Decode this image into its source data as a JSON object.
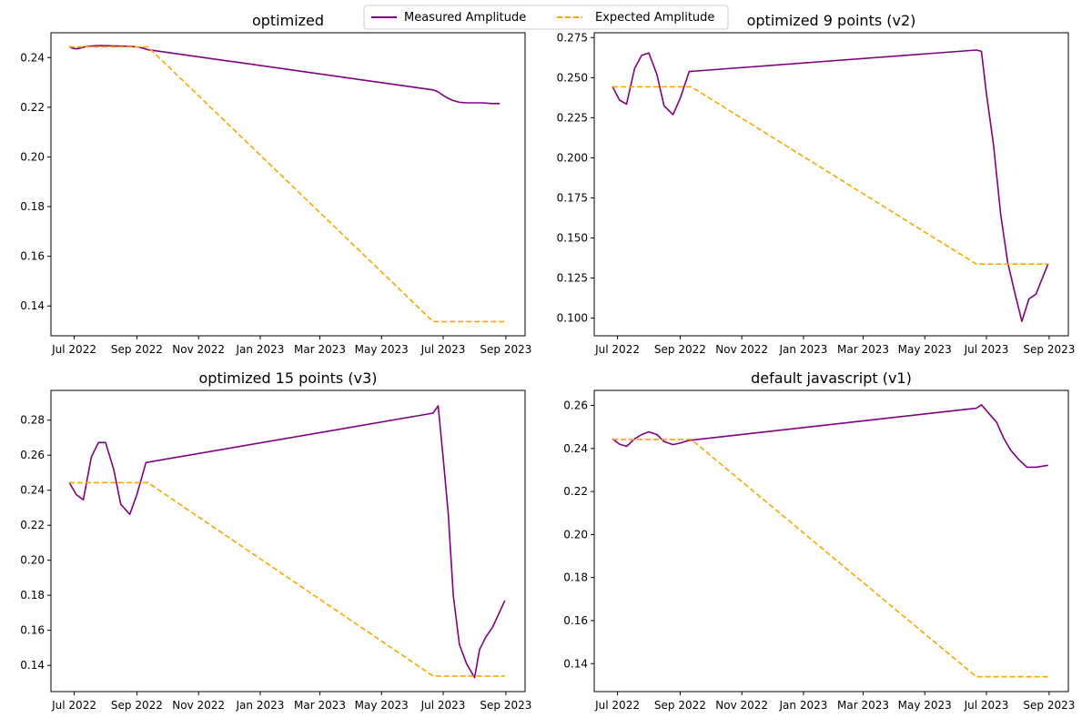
{
  "legend": {
    "placement": "top-center",
    "entries": [
      {
        "label": "Measured Amplitude",
        "color": "#800080",
        "style": "solid"
      },
      {
        "label": "Expected Amplitude",
        "color": "#FFA500",
        "style": "dashed"
      }
    ]
  },
  "chart_data": [
    {
      "type": "line",
      "title": "optimized",
      "xlabel": "",
      "ylabel": "",
      "x_tick_labels": [
        "Jul 2022",
        "Sep 2022",
        "Nov 2022",
        "Jan 2023",
        "Mar 2023",
        "May 2023",
        "Jul 2023",
        "Sep 2023"
      ],
      "x_ticks": [
        "2022-07-01",
        "2022-09-01",
        "2022-11-01",
        "2023-01-01",
        "2023-03-01",
        "2023-05-01",
        "2023-07-01",
        "2023-09-01"
      ],
      "xlim": [
        "2022-06-08",
        "2023-09-20"
      ],
      "ylim": [
        0.128,
        0.25
      ],
      "y_ticks": [
        0.14,
        0.16,
        0.18,
        0.2,
        0.22,
        0.24
      ],
      "y_tick_labels": [
        "0.14",
        "0.16",
        "0.18",
        "0.20",
        "0.22",
        "0.24"
      ],
      "grid": false,
      "series": [
        {
          "name": "Measured Amplitude",
          "color": "#800080",
          "style": "solid",
          "x": [
            "2022-06-26",
            "2022-06-29",
            "2022-07-03",
            "2022-07-06",
            "2022-07-11",
            "2022-07-17",
            "2022-07-24",
            "2022-08-01",
            "2022-08-09",
            "2022-08-18",
            "2022-08-26",
            "2022-09-03",
            "2022-09-12",
            "2023-06-21",
            "2023-06-26",
            "2023-07-01",
            "2023-07-06",
            "2023-07-11",
            "2023-07-17",
            "2023-07-24",
            "2023-08-01",
            "2023-08-09",
            "2023-08-18",
            "2023-08-26"
          ],
          "y": [
            0.2445,
            0.2438,
            0.2435,
            0.2437,
            0.2443,
            0.2446,
            0.2448,
            0.2448,
            0.2447,
            0.2446,
            0.2445,
            0.2442,
            0.2432,
            0.227,
            0.2262,
            0.2248,
            0.2236,
            0.2227,
            0.222,
            0.2218,
            0.2218,
            0.2218,
            0.2215,
            0.2215
          ]
        },
        {
          "name": "Expected Amplitude",
          "color": "#FFA500",
          "style": "dashed",
          "x": [
            "2022-06-26",
            "2022-09-12",
            "2023-06-21",
            "2023-08-31"
          ],
          "y": [
            0.2443,
            0.2443,
            0.1337,
            0.1337
          ]
        }
      ]
    },
    {
      "type": "line",
      "title": "optimized 9 points (v2)",
      "xlabel": "",
      "ylabel": "",
      "x_tick_labels": [
        "Jul 2022",
        "Sep 2022",
        "Nov 2022",
        "Jan 2023",
        "Mar 2023",
        "May 2023",
        "Jul 2023",
        "Sep 2023"
      ],
      "x_ticks": [
        "2022-07-01",
        "2022-09-01",
        "2022-11-01",
        "2023-01-01",
        "2023-03-01",
        "2023-05-01",
        "2023-07-01",
        "2023-09-01"
      ],
      "xlim": [
        "2022-06-08",
        "2023-09-20"
      ],
      "ylim": [
        0.089,
        0.278
      ],
      "y_ticks": [
        0.1,
        0.125,
        0.15,
        0.175,
        0.2,
        0.225,
        0.25,
        0.275
      ],
      "y_tick_labels": [
        "0.100",
        "0.125",
        "0.150",
        "0.175",
        "0.200",
        "0.225",
        "0.250",
        "0.275"
      ],
      "grid": false,
      "series": [
        {
          "name": "Measured Amplitude",
          "color": "#800080",
          "style": "solid",
          "x": [
            "2022-06-26",
            "2022-07-03",
            "2022-07-10",
            "2022-07-18",
            "2022-07-25",
            "2022-08-01",
            "2022-08-09",
            "2022-08-16",
            "2022-08-25",
            "2022-09-01",
            "2022-09-10",
            "2023-06-21",
            "2023-06-26",
            "2023-07-01",
            "2023-07-08",
            "2023-07-15",
            "2023-07-22",
            "2023-07-29",
            "2023-08-05",
            "2023-08-12",
            "2023-08-19",
            "2023-08-31"
          ],
          "y": [
            0.2445,
            0.236,
            0.2335,
            0.2558,
            0.264,
            0.2654,
            0.252,
            0.2325,
            0.227,
            0.237,
            0.2538,
            0.2672,
            0.2664,
            0.24,
            0.208,
            0.165,
            0.135,
            0.116,
            0.098,
            0.112,
            0.115,
            0.134
          ]
        },
        {
          "name": "Expected Amplitude",
          "color": "#FFA500",
          "style": "dashed",
          "x": [
            "2022-06-26",
            "2022-09-12",
            "2023-06-21",
            "2023-08-31"
          ],
          "y": [
            0.2443,
            0.2443,
            0.1337,
            0.1337
          ]
        }
      ]
    },
    {
      "type": "line",
      "title": "optimized 15 points (v3)",
      "xlabel": "",
      "ylabel": "",
      "x_tick_labels": [
        "Jul 2022",
        "Sep 2022",
        "Nov 2022",
        "Jan 2023",
        "Mar 2023",
        "May 2023",
        "Jul 2023",
        "Sep 2023"
      ],
      "x_ticks": [
        "2022-07-01",
        "2022-09-01",
        "2022-11-01",
        "2023-01-01",
        "2023-03-01",
        "2023-05-01",
        "2023-07-01",
        "2023-09-01"
      ],
      "xlim": [
        "2022-06-08",
        "2023-09-20"
      ],
      "ylim": [
        0.125,
        0.297
      ],
      "y_ticks": [
        0.14,
        0.16,
        0.18,
        0.2,
        0.22,
        0.24,
        0.26,
        0.28
      ],
      "y_tick_labels": [
        "0.14",
        "0.16",
        "0.18",
        "0.20",
        "0.22",
        "0.24",
        "0.26",
        "0.28"
      ],
      "grid": false,
      "series": [
        {
          "name": "Measured Amplitude",
          "color": "#800080",
          "style": "solid",
          "x": [
            "2022-06-26",
            "2022-07-03",
            "2022-07-10",
            "2022-07-18",
            "2022-07-25",
            "2022-08-01",
            "2022-08-09",
            "2022-08-16",
            "2022-08-25",
            "2022-09-01",
            "2022-09-10",
            "2023-06-21",
            "2023-06-26",
            "2023-07-01",
            "2023-07-06",
            "2023-07-11",
            "2023-07-17",
            "2023-07-24",
            "2023-08-01",
            "2023-08-06",
            "2023-08-12",
            "2023-08-19",
            "2023-08-31"
          ],
          "y": [
            0.2445,
            0.2375,
            0.2345,
            0.259,
            0.2672,
            0.2672,
            0.252,
            0.232,
            0.2262,
            0.2375,
            0.2558,
            0.284,
            0.2882,
            0.2585,
            0.2265,
            0.18,
            0.152,
            0.141,
            0.133,
            0.149,
            0.156,
            0.162,
            0.177
          ]
        },
        {
          "name": "Expected Amplitude",
          "color": "#FFA500",
          "style": "dashed",
          "x": [
            "2022-06-26",
            "2022-09-12",
            "2023-06-21",
            "2023-08-31"
          ],
          "y": [
            0.2443,
            0.2443,
            0.1339,
            0.1339
          ]
        }
      ]
    },
    {
      "type": "line",
      "title": "default javascript (v1)",
      "xlabel": "",
      "ylabel": "",
      "x_tick_labels": [
        "Jul 2022",
        "Sep 2022",
        "Nov 2022",
        "Jan 2023",
        "Mar 2023",
        "May 2023",
        "Jul 2023",
        "Sep 2023"
      ],
      "x_ticks": [
        "2022-07-01",
        "2022-09-01",
        "2022-11-01",
        "2023-01-01",
        "2023-03-01",
        "2023-05-01",
        "2023-07-01",
        "2023-09-01"
      ],
      "xlim": [
        "2022-06-08",
        "2023-09-20"
      ],
      "ylim": [
        0.127,
        0.267
      ],
      "y_ticks": [
        0.14,
        0.16,
        0.18,
        0.2,
        0.22,
        0.24,
        0.26
      ],
      "y_tick_labels": [
        "0.14",
        "0.16",
        "0.18",
        "0.20",
        "0.22",
        "0.24",
        "0.26"
      ],
      "grid": false,
      "series": [
        {
          "name": "Measured Amplitude",
          "color": "#800080",
          "style": "solid",
          "x": [
            "2022-06-26",
            "2022-07-03",
            "2022-07-10",
            "2022-07-18",
            "2022-07-25",
            "2022-08-01",
            "2022-08-09",
            "2022-08-16",
            "2022-08-25",
            "2022-09-01",
            "2022-09-10",
            "2023-06-21",
            "2023-06-26",
            "2023-07-03",
            "2023-07-11",
            "2023-07-18",
            "2023-07-25",
            "2023-08-02",
            "2023-08-10",
            "2023-08-19",
            "2023-08-31"
          ],
          "y": [
            0.2445,
            0.242,
            0.241,
            0.2445,
            0.2465,
            0.2477,
            0.2465,
            0.2432,
            0.2418,
            0.2425,
            0.2438,
            0.2587,
            0.2603,
            0.2565,
            0.2523,
            0.2448,
            0.2392,
            0.2348,
            0.2313,
            0.2313,
            0.2322
          ]
        },
        {
          "name": "Expected Amplitude",
          "color": "#FFA500",
          "style": "dashed",
          "x": [
            "2022-06-26",
            "2022-09-12",
            "2023-06-21",
            "2023-08-31"
          ],
          "y": [
            0.2442,
            0.2442,
            0.1339,
            0.1339
          ]
        }
      ]
    }
  ]
}
